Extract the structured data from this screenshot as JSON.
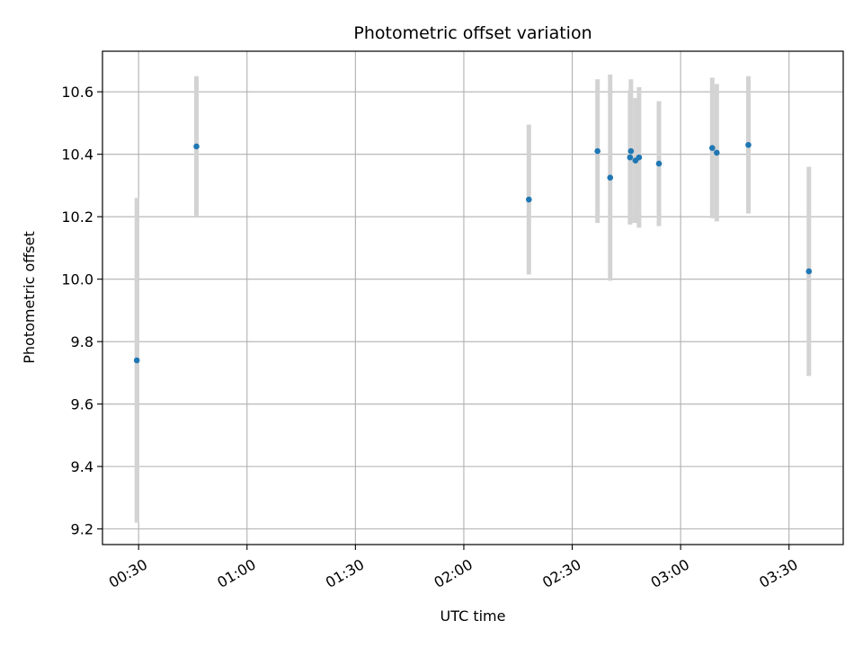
{
  "chart_data": {
    "type": "scatter",
    "title": "Photometric offset variation",
    "xlabel": "UTC time",
    "ylabel": "Photometric offset",
    "x_ticks": [
      "00:30",
      "01:00",
      "01:30",
      "02:00",
      "02:30",
      "03:00",
      "03:30"
    ],
    "y_ticks": [
      "9.2",
      "9.4",
      "9.6",
      "9.8",
      "10.0",
      "10.2",
      "10.4",
      "10.6"
    ],
    "xlim": [
      "00:20",
      "03:45"
    ],
    "ylim": [
      9.15,
      10.73
    ],
    "grid": true,
    "marker_color": "#1f77b4",
    "errorbar_color": "#d3d3d3",
    "points": [
      {
        "time": "00:29:30",
        "y": 9.74,
        "err": 0.52
      },
      {
        "time": "00:46:00",
        "y": 10.425,
        "err": 0.225
      },
      {
        "time": "02:18:00",
        "y": 10.255,
        "err": 0.24
      },
      {
        "time": "02:37:00",
        "y": 10.41,
        "err": 0.23
      },
      {
        "time": "02:40:30",
        "y": 10.325,
        "err": 0.33
      },
      {
        "time": "02:46:00",
        "y": 10.39,
        "err": 0.215
      },
      {
        "time": "02:46:15",
        "y": 10.41,
        "err": 0.23
      },
      {
        "time": "02:47:30",
        "y": 10.38,
        "err": 0.2
      },
      {
        "time": "02:48:30",
        "y": 10.39,
        "err": 0.225
      },
      {
        "time": "02:54:00",
        "y": 10.37,
        "err": 0.2
      },
      {
        "time": "03:08:45",
        "y": 10.42,
        "err": 0.225
      },
      {
        "time": "03:10:00",
        "y": 10.405,
        "err": 0.22
      },
      {
        "time": "03:18:45",
        "y": 10.43,
        "err": 0.22
      },
      {
        "time": "03:35:30",
        "y": 10.025,
        "err": 0.335
      }
    ]
  }
}
